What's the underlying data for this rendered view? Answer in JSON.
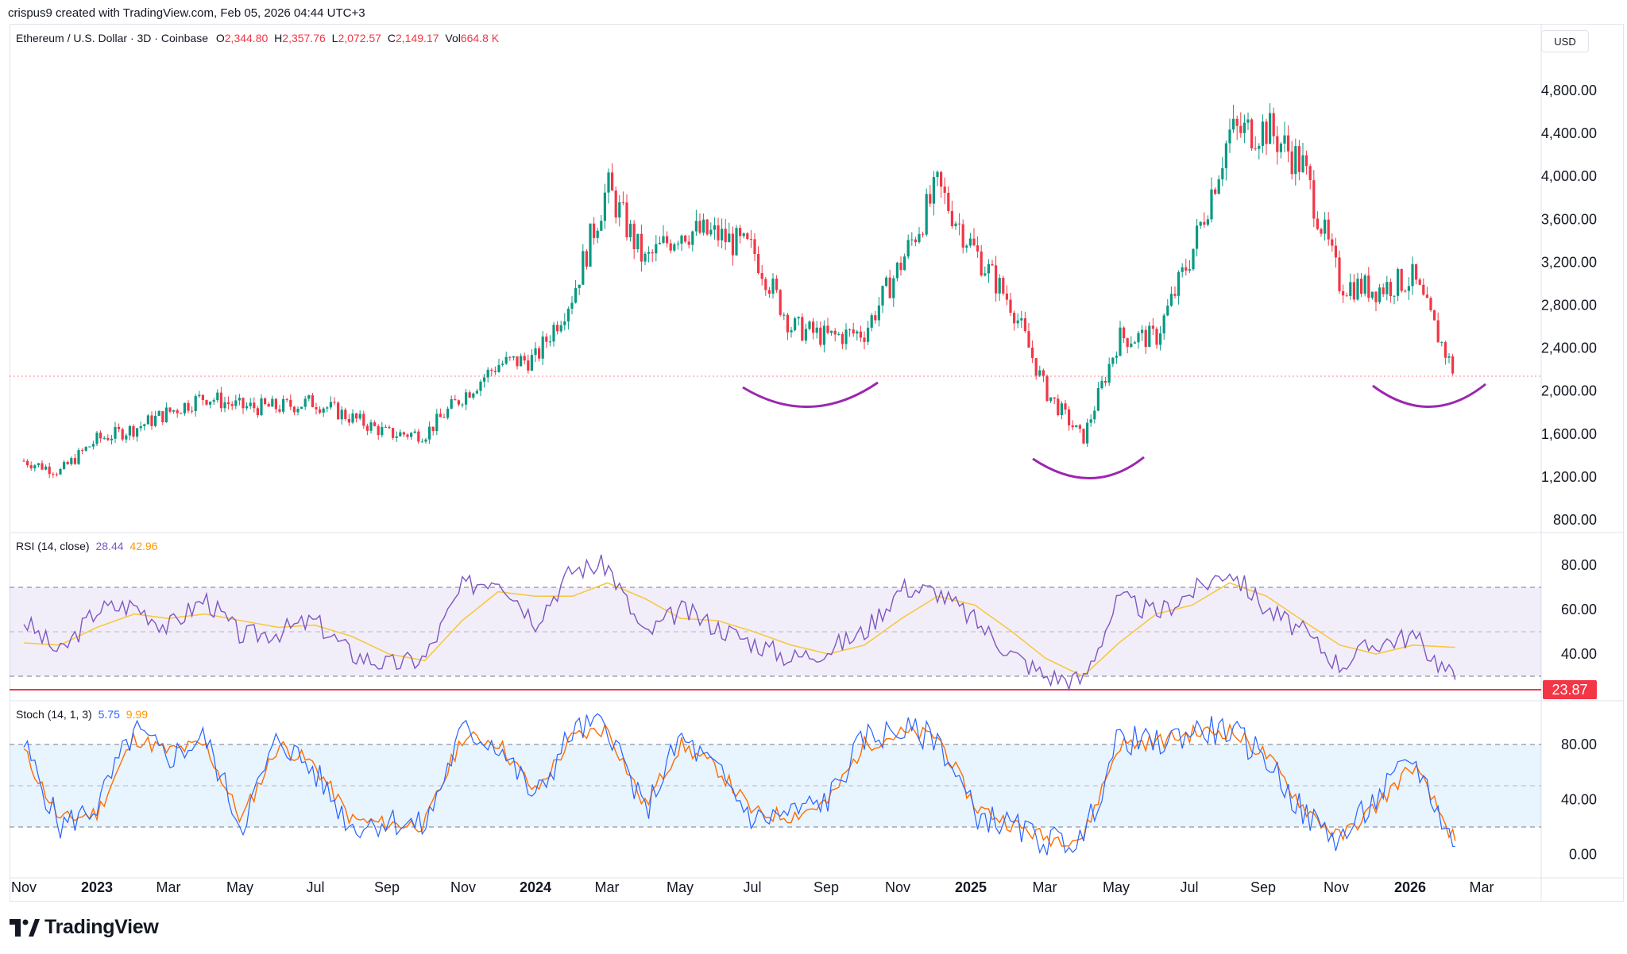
{
  "header": {
    "credit": "crispus9 created with TradingView.com, Feb 05, 2026 04:44 UTC+3",
    "symbol": "Ethereum / U.S. Dollar · 3D · Coinbase",
    "o_label": "O",
    "o_value": "2,344.80",
    "h_label": "H",
    "h_value": "2,357.76",
    "l_label": "L",
    "l_value": "2,072.57",
    "c_label": "C",
    "c_value": "2,149.17",
    "vol_label": "Vol",
    "vol_value": "664.8 K",
    "currency": "USD"
  },
  "rsi_legend": {
    "label": "RSI (14, close)",
    "rsi": "28.44",
    "ma": "42.96",
    "marker": "23.87"
  },
  "stoch_legend": {
    "label": "Stoch (14, 1, 3)",
    "k": "5.75",
    "d": "9.99"
  },
  "brand": {
    "name": "TradingView"
  },
  "colors": {
    "up": "#089981",
    "down": "#f23645",
    "rsi_line": "#7e57c2",
    "rsi_ma": "#f7c843",
    "stoch_k": "#2962ff",
    "stoch_d": "#ff6d00",
    "annotation": "#9c27b0",
    "marker": "#f23645"
  },
  "chart_data": [
    {
      "type": "candlestick",
      "series": [
        {
          "name": "Ethereum / U.S. Dollar"
        }
      ],
      "x_ticks": [
        "Nov",
        "2023",
        "Mar",
        "May",
        "Jul",
        "Sep",
        "Nov",
        "2024",
        "Mar",
        "May",
        "Jul",
        "Sep",
        "Nov",
        "2025",
        "Mar",
        "May",
        "Jul",
        "Sep",
        "Nov",
        "2026",
        "Mar"
      ],
      "y_ticks": [
        "4,800.00",
        "4,400.00",
        "4,000.00",
        "3,600.00",
        "3,200.00",
        "2,800.00",
        "2,400.00",
        "2,000.00",
        "1,600.00",
        "1,200.00",
        "800.00"
      ],
      "ylim": [
        800,
        4900
      ],
      "x": [
        "2022-11-01",
        "2022-12-01",
        "2023-01-01",
        "2023-02-01",
        "2023-03-01",
        "2023-04-01",
        "2023-05-01",
        "2023-06-01",
        "2023-07-01",
        "2023-08-01",
        "2023-09-01",
        "2023-10-01",
        "2023-11-01",
        "2023-12-01",
        "2024-01-01",
        "2024-02-01",
        "2024-03-01",
        "2024-04-01",
        "2024-05-01",
        "2024-06-01",
        "2024-07-01",
        "2024-08-01",
        "2024-09-01",
        "2024-10-01",
        "2024-11-01",
        "2024-12-01",
        "2025-01-01",
        "2025-02-01",
        "2025-03-01",
        "2025-04-01",
        "2025-05-01",
        "2025-06-01",
        "2025-07-01",
        "2025-08-01",
        "2025-09-01",
        "2025-10-01",
        "2025-11-01",
        "2025-12-01",
        "2026-01-01",
        "2026-02-05"
      ],
      "close": [
        1350,
        1250,
        1550,
        1650,
        1800,
        1950,
        1850,
        1850,
        1900,
        1750,
        1600,
        1600,
        1950,
        2250,
        2300,
        2900,
        3900,
        3200,
        3500,
        3450,
        3300,
        2600,
        2500,
        2550,
        3200,
        3900,
        3300,
        2800,
        2000,
        1550,
        2500,
        2500,
        3300,
        4400,
        4450,
        4100,
        3000,
        2950,
        3050,
        2149
      ],
      "price_line": 2149,
      "annotations": [
        "support-arc-2024",
        "support-arc-2025",
        "support-arc-2026"
      ]
    },
    {
      "type": "line",
      "title": "RSI (14, close)",
      "series": [
        {
          "name": "RSI",
          "last": 28.44
        },
        {
          "name": "MA",
          "last": 42.96
        }
      ],
      "y_ticks": [
        "80.00",
        "60.00",
        "40.00"
      ],
      "bands": [
        70,
        30
      ],
      "marker": 23.87,
      "ylim": [
        20,
        88
      ],
      "x": [
        "2022-11-01",
        "2022-12-01",
        "2023-01-01",
        "2023-02-01",
        "2023-03-01",
        "2023-04-01",
        "2023-05-01",
        "2023-06-01",
        "2023-07-01",
        "2023-08-01",
        "2023-09-01",
        "2023-10-01",
        "2023-11-01",
        "2023-12-01",
        "2024-01-01",
        "2024-02-01",
        "2024-03-01",
        "2024-04-01",
        "2024-05-01",
        "2024-06-01",
        "2024-07-01",
        "2024-08-01",
        "2024-09-01",
        "2024-10-01",
        "2024-11-01",
        "2024-12-01",
        "2025-01-01",
        "2025-02-01",
        "2025-03-01",
        "2025-04-01",
        "2025-05-01",
        "2025-06-01",
        "2025-07-01",
        "2025-08-01",
        "2025-09-01",
        "2025-10-01",
        "2025-11-01",
        "2025-12-01",
        "2026-01-01",
        "2026-02-05"
      ],
      "rsi": [
        55,
        40,
        60,
        62,
        52,
        65,
        48,
        50,
        55,
        40,
        35,
        38,
        70,
        75,
        55,
        78,
        80,
        48,
        60,
        52,
        45,
        38,
        42,
        50,
        70,
        68,
        55,
        40,
        30,
        28,
        65,
        58,
        68,
        78,
        60,
        50,
        35,
        45,
        48,
        28.44
      ],
      "ma": [
        45,
        44,
        52,
        58,
        56,
        58,
        55,
        52,
        53,
        48,
        40,
        37,
        55,
        68,
        66,
        66,
        72,
        65,
        56,
        55,
        50,
        44,
        40,
        44,
        56,
        66,
        62,
        50,
        38,
        30,
        45,
        58,
        62,
        72,
        66,
        55,
        44,
        40,
        44,
        42.96
      ]
    },
    {
      "type": "line",
      "title": "Stoch (14, 1, 3)",
      "series": [
        {
          "name": "%K",
          "last": 5.75
        },
        {
          "name": "%D",
          "last": 9.99
        }
      ],
      "y_ticks": [
        "80.00",
        "40.00",
        "0.00"
      ],
      "bands": [
        80,
        50,
        20
      ],
      "ylim": [
        0,
        100
      ],
      "x": [
        "2022-11-01",
        "2022-12-01",
        "2023-01-01",
        "2023-02-01",
        "2023-03-01",
        "2023-04-01",
        "2023-05-01",
        "2023-06-01",
        "2023-07-01",
        "2023-08-01",
        "2023-09-01",
        "2023-10-01",
        "2023-11-01",
        "2023-12-01",
        "2024-01-01",
        "2024-02-01",
        "2024-03-01",
        "2024-04-01",
        "2024-05-01",
        "2024-06-01",
        "2024-07-01",
        "2024-08-01",
        "2024-09-01",
        "2024-10-01",
        "2024-11-01",
        "2024-12-01",
        "2025-01-01",
        "2025-02-01",
        "2025-03-01",
        "2025-04-01",
        "2025-05-01",
        "2025-06-01",
        "2025-07-01",
        "2025-08-01",
        "2025-09-01",
        "2025-10-01",
        "2025-11-01",
        "2025-12-01",
        "2026-01-01",
        "2026-02-05"
      ],
      "k": [
        80,
        20,
        35,
        90,
        70,
        85,
        20,
        85,
        60,
        20,
        25,
        20,
        90,
        80,
        40,
        90,
        95,
        30,
        85,
        60,
        25,
        30,
        40,
        85,
        90,
        85,
        30,
        20,
        10,
        10,
        85,
        80,
        90,
        90,
        70,
        30,
        10,
        40,
        70,
        5.75
      ],
      "d": [
        75,
        25,
        30,
        85,
        75,
        80,
        25,
        80,
        65,
        25,
        22,
        22,
        85,
        82,
        45,
        85,
        92,
        35,
        80,
        62,
        30,
        28,
        38,
        80,
        88,
        86,
        35,
        22,
        12,
        12,
        80,
        82,
        88,
        90,
        72,
        35,
        12,
        35,
        65,
        9.99
      ]
    }
  ]
}
